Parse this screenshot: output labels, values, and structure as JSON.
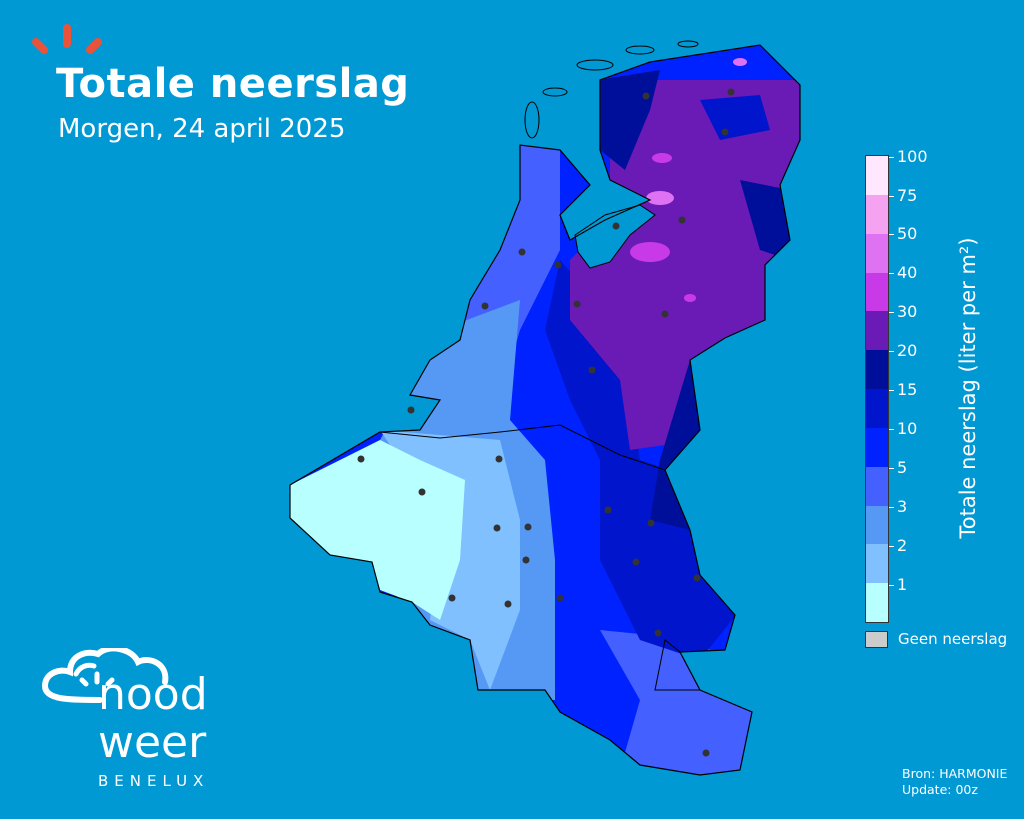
{
  "header": {
    "title": "Totale neerslag",
    "subtitle": "Morgen, 24 april 2025"
  },
  "legend": {
    "label": "Totale neerslag (liter per m²)",
    "ticks": [
      "1",
      "2",
      "3",
      "5",
      "10",
      "15",
      "20",
      "30",
      "40",
      "50",
      "75",
      "100"
    ],
    "colors": [
      "#b8ffff",
      "#80c0ff",
      "#5599f5",
      "#4460ff",
      "#0022ff",
      "#0015cc",
      "#000f9a",
      "#6a1ab5",
      "#c83ae8",
      "#de72f2",
      "#f5a3f0",
      "#ffe8ff"
    ],
    "no_precip_label": "Geen neerslag",
    "no_precip_color": "#cccccc"
  },
  "source": {
    "line1": "Bron: HARMONIE",
    "line2": "Update: 00z"
  },
  "logo": {
    "word1": "nood",
    "word2": "weer",
    "tagline": "BENELUX"
  },
  "brand_colors": {
    "background": "#0099d4",
    "accent": "#e8533a"
  }
}
